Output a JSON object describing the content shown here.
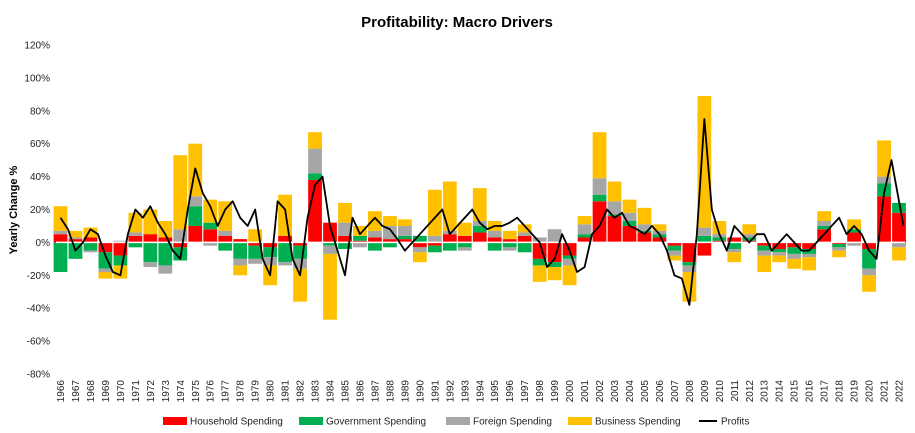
{
  "chart_data": {
    "type": "area",
    "title": "Profitability: Macro Drivers",
    "xlabel": "",
    "ylabel": "Yearly Change %",
    "ylim": [
      -80,
      120
    ],
    "xlim": [
      1965.7,
      2022.4
    ],
    "yticks": [
      "-80%",
      "-60%",
      "-40%",
      "-20%",
      "0%",
      "20%",
      "40%",
      "60%",
      "80%",
      "100%",
      "120%"
    ],
    "ytick_values": [
      -80,
      -60,
      -40,
      -20,
      0,
      20,
      40,
      60,
      80,
      100,
      120
    ],
    "xticks": [
      "1966",
      "1967",
      "1968",
      "1969",
      "1970",
      "1971",
      "1972",
      "1973",
      "1974",
      "1975",
      "1976",
      "1977",
      "1978",
      "1979",
      "1980",
      "1981",
      "1982",
      "1983",
      "1984",
      "1985",
      "1986",
      "1987",
      "1988",
      "1989",
      "1990",
      "1991",
      "1992",
      "1993",
      "1994",
      "1995",
      "1996",
      "1997",
      "1998",
      "1999",
      "2000",
      "2001",
      "2002",
      "2003",
      "2004",
      "2005",
      "2006",
      "2007",
      "2008",
      "2009",
      "2010",
      "2011",
      "2012",
      "2013",
      "2014",
      "2015",
      "2016",
      "2017",
      "2018",
      "2019",
      "2020",
      "2021",
      "2022"
    ],
    "legend_position": "bottom",
    "colors": {
      "household": "#ff0000",
      "government": "#00b050",
      "foreign": "#a6a6a6",
      "business": "#ffc000",
      "profits": "#000000"
    },
    "series": [
      {
        "name": "Household Spending",
        "key": "household",
        "x": [
          1966,
          1967,
          1968,
          1969,
          1970,
          1971,
          1972,
          1973,
          1974,
          1975,
          1976,
          1977,
          1978,
          1979,
          1980,
          1981,
          1982,
          1983,
          1984,
          1985,
          1986,
          1987,
          1988,
          1989,
          1990,
          1991,
          1992,
          1993,
          1994,
          1995,
          1996,
          1997,
          1998,
          1999,
          2000,
          2001,
          2002,
          2003,
          2004,
          2005,
          2006,
          2007,
          2008,
          2009,
          2010,
          2011,
          2012,
          2013,
          2014,
          2015,
          2016,
          2017,
          2018,
          2019,
          2020,
          2021,
          2022
        ],
        "values": [
          5,
          2,
          3,
          -6,
          -8,
          4,
          5,
          3,
          -3,
          10,
          8,
          4,
          2,
          -2,
          -3,
          4,
          -2,
          38,
          12,
          4,
          1,
          3,
          2,
          2,
          -3,
          -2,
          5,
          4,
          6,
          3,
          2,
          4,
          -10,
          -12,
          -8,
          3,
          25,
          16,
          10,
          6,
          3,
          -2,
          -12,
          -8,
          1,
          3,
          1,
          -2,
          -4,
          -3,
          -4,
          8,
          -1,
          6,
          -4,
          28,
          18
        ]
      },
      {
        "name": "Government Spending",
        "key": "government",
        "x": [
          1966,
          1967,
          1968,
          1969,
          1970,
          1971,
          1972,
          1973,
          1974,
          1975,
          1976,
          1977,
          1978,
          1979,
          1980,
          1981,
          1982,
          1983,
          1984,
          1985,
          1986,
          1987,
          1988,
          1989,
          1990,
          1991,
          1992,
          1993,
          1994,
          1995,
          1996,
          1997,
          1998,
          1999,
          2000,
          2001,
          2002,
          2003,
          2004,
          2005,
          2006,
          2007,
          2008,
          2009,
          2010,
          2011,
          2012,
          2013,
          2014,
          2015,
          2016,
          2017,
          2018,
          2019,
          2020,
          2021,
          2022
        ],
        "values": [
          -18,
          -10,
          -5,
          -10,
          -6,
          -3,
          -12,
          -14,
          -8,
          12,
          4,
          -5,
          -10,
          -8,
          -6,
          -12,
          -8,
          4,
          -2,
          -4,
          3,
          -5,
          -3,
          2,
          4,
          -4,
          -5,
          -3,
          4,
          -5,
          -3,
          -6,
          -4,
          -3,
          -2,
          2,
          4,
          1,
          3,
          1,
          2,
          -3,
          -2,
          4,
          2,
          -4,
          2,
          -3,
          -2,
          -4,
          -3,
          2,
          -2,
          2,
          -12,
          8,
          6
        ]
      },
      {
        "name": "Foreign Spending",
        "key": "foreign",
        "x": [
          1966,
          1967,
          1968,
          1969,
          1970,
          1971,
          1972,
          1973,
          1974,
          1975,
          1976,
          1977,
          1978,
          1979,
          1980,
          1981,
          1982,
          1983,
          1984,
          1985,
          1986,
          1987,
          1988,
          1989,
          1990,
          1991,
          1992,
          1993,
          1994,
          1995,
          1996,
          1997,
          1998,
          1999,
          2000,
          2001,
          2002,
          2003,
          2004,
          2005,
          2006,
          2007,
          2008,
          2009,
          2010,
          2011,
          2012,
          2013,
          2014,
          2015,
          2016,
          2017,
          2018,
          2019,
          2020,
          2021,
          2022
        ],
        "values": [
          2,
          1,
          -1,
          -2,
          1,
          2,
          -3,
          -5,
          8,
          6,
          -2,
          3,
          -4,
          -3,
          -5,
          -2,
          -6,
          15,
          -5,
          8,
          -3,
          4,
          8,
          6,
          -3,
          4,
          2,
          -2,
          3,
          4,
          -2,
          2,
          3,
          8,
          -4,
          6,
          10,
          8,
          5,
          4,
          2,
          -3,
          -4,
          5,
          2,
          -2,
          2,
          -3,
          -2,
          -3,
          -2,
          3,
          -2,
          -2,
          -4,
          4,
          -3
        ]
      },
      {
        "name": "Business Spending",
        "key": "business",
        "x": [
          1966,
          1967,
          1968,
          1969,
          1970,
          1971,
          1972,
          1973,
          1974,
          1975,
          1976,
          1977,
          1978,
          1979,
          1980,
          1981,
          1982,
          1983,
          1984,
          1985,
          1986,
          1987,
          1988,
          1989,
          1990,
          1991,
          1992,
          1993,
          1994,
          1995,
          1996,
          1997,
          1998,
          1999,
          2000,
          2001,
          2002,
          2003,
          2004,
          2005,
          2006,
          2007,
          2008,
          2009,
          2010,
          2011,
          2012,
          2013,
          2014,
          2015,
          2016,
          2017,
          2018,
          2019,
          2020,
          2021,
          2022
        ],
        "values": [
          15,
          4,
          6,
          -4,
          -8,
          12,
          15,
          10,
          45,
          32,
          14,
          18,
          -6,
          8,
          -12,
          25,
          -20,
          10,
          -40,
          12,
          6,
          12,
          6,
          4,
          -6,
          28,
          30,
          8,
          20,
          6,
          5,
          5,
          -10,
          -8,
          -12,
          5,
          28,
          12,
          8,
          10,
          4,
          -3,
          -18,
          80,
          8,
          -6,
          6,
          -10,
          -4,
          -6,
          -8,
          6,
          -4,
          6,
          -10,
          22,
          -8
        ]
      },
      {
        "name": "Profits",
        "key": "profits",
        "x": [
          1966.0,
          1966.5,
          1967.0,
          1967.5,
          1968.0,
          1968.5,
          1969.0,
          1969.5,
          1970.0,
          1970.5,
          1971.0,
          1971.5,
          1972.0,
          1972.5,
          1973.0,
          1973.5,
          1974.0,
          1974.5,
          1975.0,
          1975.5,
          1976.0,
          1976.5,
          1977.0,
          1977.5,
          1978.0,
          1978.5,
          1979.0,
          1979.5,
          1980.0,
          1980.5,
          1981.0,
          1981.5,
          1982.0,
          1982.5,
          1983.0,
          1983.5,
          1984.0,
          1984.5,
          1985.0,
          1985.5,
          1986.0,
          1986.5,
          1987.0,
          1987.5,
          1988.0,
          1988.5,
          1989.0,
          1989.5,
          1990.0,
          1990.5,
          1991.0,
          1991.5,
          1992.0,
          1992.5,
          1993.0,
          1993.5,
          1994.0,
          1994.5,
          1995.0,
          1995.5,
          1996.0,
          1996.5,
          1997.0,
          1997.5,
          1998.0,
          1998.5,
          1999.0,
          1999.5,
          2000.0,
          2000.5,
          2001.0,
          2001.5,
          2002.0,
          2002.5,
          2003.0,
          2003.5,
          2004.0,
          2004.5,
          2005.0,
          2005.5,
          2006.0,
          2006.5,
          2007.0,
          2007.5,
          2008.0,
          2008.5,
          2009.0,
          2009.5,
          2010.0,
          2010.5,
          2011.0,
          2011.5,
          2012.0,
          2012.5,
          2013.0,
          2013.5,
          2014.0,
          2014.5,
          2015.0,
          2015.5,
          2016.0,
          2016.5,
          2017.0,
          2017.5,
          2018.0,
          2018.5,
          2019.0,
          2019.5,
          2020.0,
          2020.5,
          2021.0,
          2021.5,
          2022.0,
          2022.3
        ],
        "values": [
          15,
          8,
          -5,
          0,
          8,
          5,
          -8,
          -18,
          -20,
          5,
          20,
          15,
          22,
          12,
          5,
          -5,
          -10,
          20,
          45,
          30,
          22,
          10,
          20,
          25,
          15,
          10,
          20,
          -10,
          -20,
          25,
          20,
          -10,
          -20,
          15,
          35,
          40,
          10,
          -5,
          -20,
          15,
          5,
          10,
          15,
          10,
          8,
          2,
          -5,
          0,
          5,
          10,
          15,
          20,
          5,
          10,
          15,
          20,
          12,
          8,
          10,
          10,
          12,
          15,
          10,
          5,
          0,
          -15,
          -10,
          5,
          -5,
          -18,
          -15,
          5,
          10,
          20,
          15,
          18,
          10,
          8,
          5,
          10,
          5,
          -5,
          -20,
          -22,
          -38,
          5,
          75,
          20,
          5,
          -5,
          10,
          5,
          0,
          5,
          5,
          -5,
          0,
          5,
          0,
          -5,
          -5,
          0,
          5,
          10,
          15,
          5,
          10,
          5,
          -5,
          -10,
          30,
          50,
          25,
          10
        ]
      }
    ]
  }
}
